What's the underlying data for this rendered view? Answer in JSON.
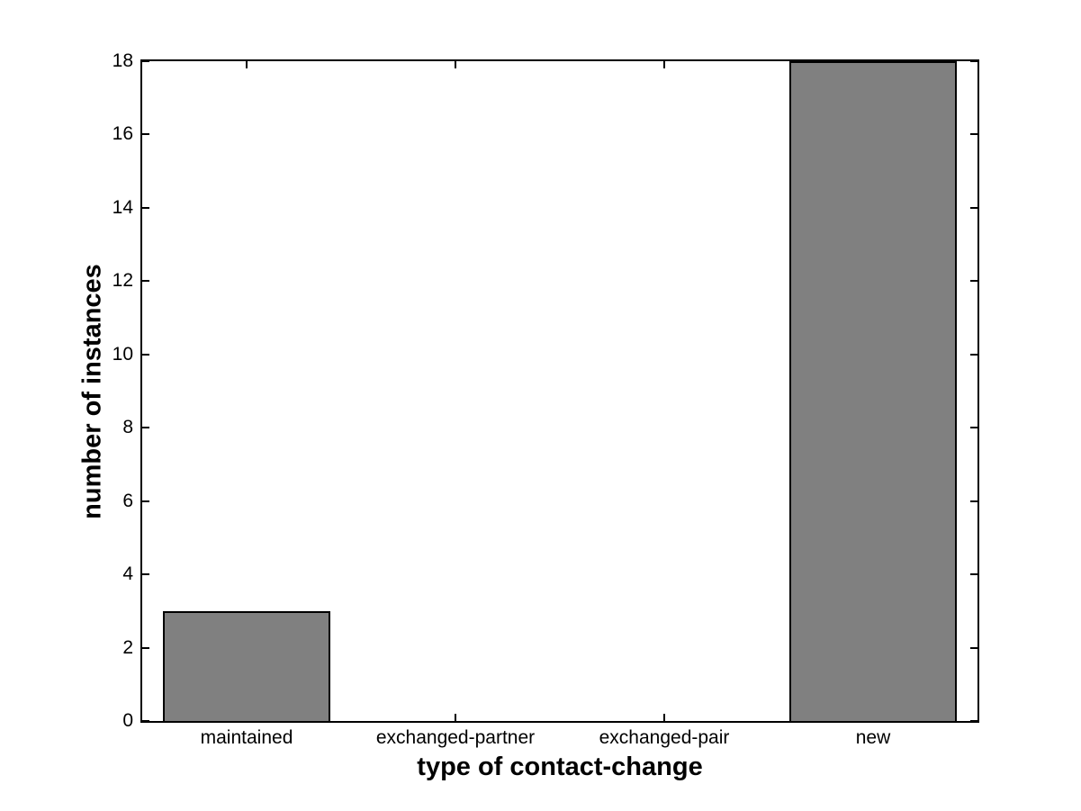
{
  "figure": {
    "background_color": "#ffffff",
    "axis_color": "#000000"
  },
  "chart_data": {
    "type": "bar",
    "title": "",
    "categories": [
      "maintained",
      "exchanged-partner",
      "exchanged-pair",
      "new"
    ],
    "values": [
      3,
      0,
      0,
      18
    ],
    "xlabel": "type of contact-change",
    "ylabel": "number of instances",
    "ylim": [
      0,
      18
    ],
    "yticks": [
      0,
      2,
      4,
      6,
      8,
      10,
      12,
      14,
      16,
      18
    ],
    "ytick_labels": [
      "0",
      "2",
      "4",
      "6",
      "8",
      "10",
      "12",
      "14",
      "16",
      "18"
    ],
    "bar_color": "#808080",
    "bar_edge_color": "#000000",
    "bar_width_fraction": 0.8,
    "grid": false,
    "legend": null,
    "box": true,
    "ticks_inward": true
  }
}
